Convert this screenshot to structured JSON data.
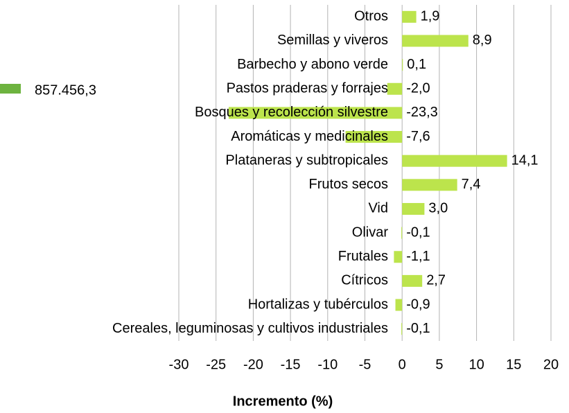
{
  "chart_data": {
    "type": "hbar",
    "x_label": "Incremento (%)",
    "categories": [
      "Otros",
      "Semillas y viveros",
      "Barbecho y abono verde",
      "Pastos praderas y forrajes",
      "Bosques y recolección silvestre",
      "Aromáticas y medicinales",
      "Plataneras y subtropicales",
      "Frutos secos",
      "Vid",
      "Olivar",
      "Frutales",
      "Cítricos",
      "Hortalizas y tubérculos",
      "Cereales, leguminosas y cultivos industriales"
    ],
    "series": [
      {
        "name": "857.456,3",
        "color": "#bce44c",
        "legend_color": "#6db33f",
        "values": [
          1.9,
          8.9,
          0.1,
          -2.0,
          -23.3,
          -7.6,
          14.1,
          7.4,
          3.0,
          -0.1,
          -1.1,
          2.7,
          -0.9,
          -0.1
        ],
        "value_labels": [
          "1,9",
          "8,9",
          "0,1",
          "-2,0",
          "-23,3",
          "-7,6",
          "14,1",
          "7,4",
          "3,0",
          "-0,1",
          "-1,1",
          "2,7",
          "-0,9",
          "-0,1"
        ]
      }
    ],
    "xlim": [
      -30,
      20
    ],
    "xticks": [
      -30,
      -25,
      -20,
      -15,
      -10,
      -5,
      0,
      5,
      10,
      15,
      20
    ],
    "grid": true
  }
}
